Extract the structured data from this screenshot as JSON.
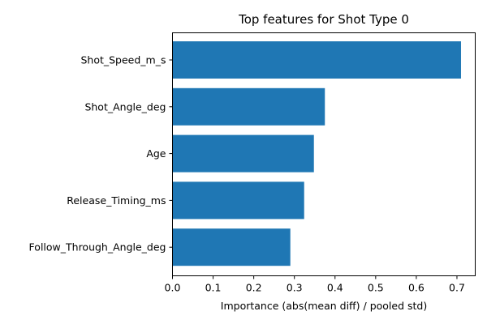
{
  "chart_data": {
    "type": "bar",
    "orientation": "horizontal",
    "title": "Top features for Shot Type 0",
    "xlabel": "Importance (abs(mean diff) / pooled std)",
    "ylabel": "",
    "categories": [
      "Shot_Speed_m_s",
      "Shot_Angle_deg",
      "Age",
      "Release_Timing_ms",
      "Follow_Through_Angle_deg"
    ],
    "values": [
      0.71,
      0.375,
      0.348,
      0.324,
      0.29
    ],
    "xlim": [
      0,
      0.745
    ],
    "xticks": [
      "0.0",
      "0.1",
      "0.2",
      "0.3",
      "0.4",
      "0.5",
      "0.6",
      "0.7"
    ],
    "bar_color": "#1f77b4",
    "grid": false,
    "legend": "none"
  }
}
